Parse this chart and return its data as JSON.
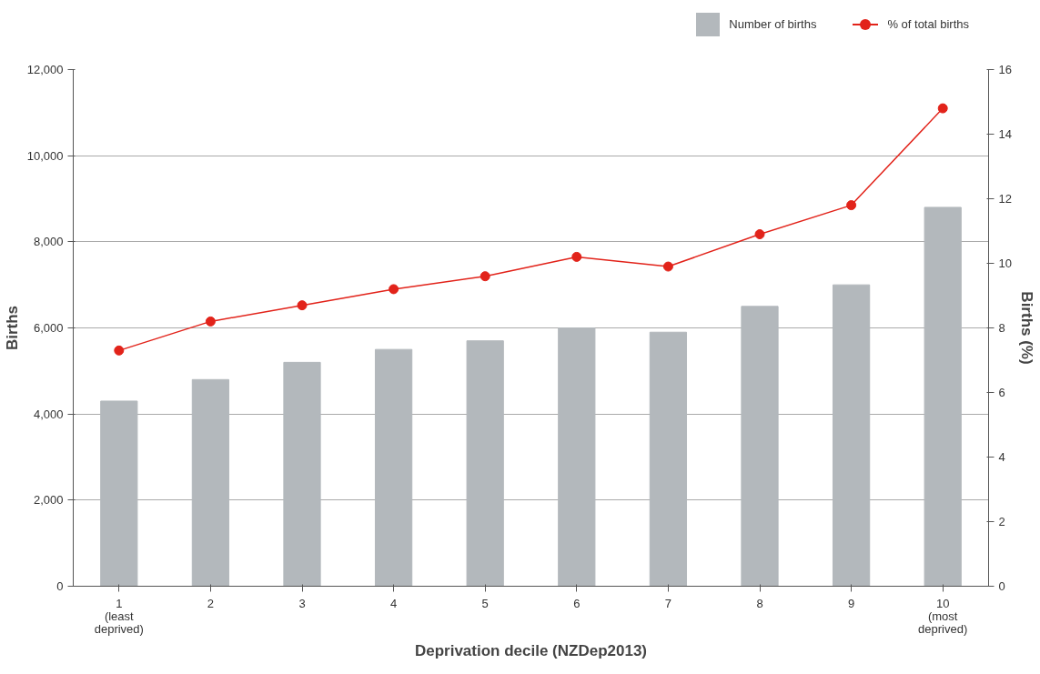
{
  "chart_data": {
    "type": "bar",
    "xlabel": "Deprivation decile (NZDep2013)",
    "ylabel": "Births",
    "y2label": "Births (%)",
    "categories": [
      "1\n(least\ndeprived)",
      "2",
      "3",
      "4",
      "5",
      "6",
      "7",
      "8",
      "9",
      "10\n(most\ndeprived)"
    ],
    "series": [
      {
        "name": "Number of births",
        "color": "#b3b8bc",
        "values": [
          4300,
          4800,
          5200,
          5500,
          5700,
          6000,
          5900,
          6500,
          7000,
          8800
        ]
      },
      {
        "name": "% of total births",
        "type": "line",
        "axis": "y2",
        "color": "#e2231a",
        "marker": "circle",
        "values": [
          7.3,
          8.2,
          8.7,
          9.2,
          9.6,
          10.2,
          9.9,
          10.9,
          11.8,
          14.8
        ]
      }
    ],
    "ylim": [
      0,
      12000
    ],
    "yticks": [
      {
        "value": 0,
        "label": "0"
      },
      {
        "value": 2000,
        "label": "2,000"
      },
      {
        "value": 4000,
        "label": "4,000"
      },
      {
        "value": 6000,
        "label": "6,000"
      },
      {
        "value": 8000,
        "label": "8,000"
      },
      {
        "value": 10000,
        "label": "10,000"
      },
      {
        "value": 12000,
        "label": "12,000"
      }
    ],
    "y2lim": [
      0,
      16
    ],
    "y2ticks": [
      0,
      2,
      4,
      6,
      8,
      10,
      12,
      14,
      16
    ],
    "grid": "y",
    "legend": "top right"
  }
}
